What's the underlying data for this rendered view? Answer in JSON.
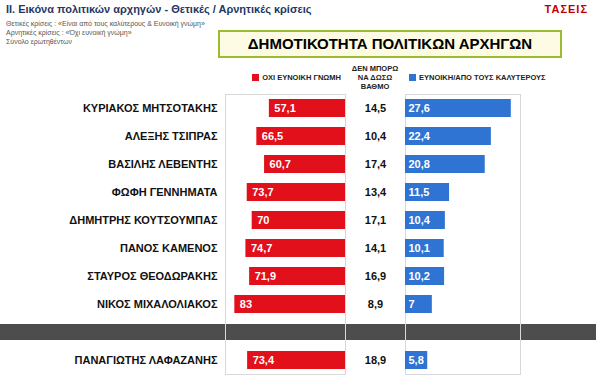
{
  "header": {
    "section": "ΙΙ. Εικόνα πολιτικών αρχηγών - Θετικές / Αρνητικές κρίσεις",
    "notes": [
      "Θετικές κρίσεις : «Είναι από τους καλύτερους & Ευνοική γνώμη»",
      "Αρνητικές κρίσεις : «Όχι ευνοική γνώμη»",
      "Σύνολο ερωτηθέντων"
    ],
    "logo": "ΤΑΣΕΙΣ"
  },
  "chart_data": {
    "type": "bar",
    "orientation": "horizontal",
    "title": "ΔΗΜΟΤΙΚΟΤΗΤΑ ΠΟΛΙΤΙΚΩΝ ΑΡΧΗΓΩΝ",
    "categories": [
      "ΚΥΡΙΑΚΟΣ ΜΗΤΣΟΤΑΚΗΣ",
      "ΑΛΕΞΗΣ ΤΣΙΠΡΑΣ",
      "ΒΑΣΙΛΗΣ ΛΕΒΕΝΤΗΣ",
      "ΦΩΦΗ ΓΕΝΝΗΜΑΤΑ",
      "ΔΗΜΗΤΡΗΣ ΚΟΥΤΣΟΥΜΠΑΣ",
      "ΠΑΝΟΣ ΚΑΜΕΝΟΣ",
      "ΣΤΑΥΡΟΣ ΘΕΟΔΩΡΑΚΗΣ",
      "ΝΙΚΟΣ ΜΙΧΑΛΟΛΙΑΚΟΣ",
      null,
      "ΠΑΝΑΓΙΩΤΗΣ ΛΑΦΑΖΑΝΗΣ"
    ],
    "data_labels": true,
    "tick_labels": false,
    "legend": "top",
    "series": [
      {
        "name": "ΟΧΙ ΕΥΝΟΙΚΗ ΓΝΩΜΗ",
        "color": "#e2101a",
        "xlim": [
          0,
          90
        ],
        "values": [
          57.1,
          66.5,
          60.7,
          73.7,
          70,
          74.7,
          71.9,
          83,
          null,
          73.4
        ],
        "value_labels": [
          "57,1",
          "66,5",
          "60,7",
          "73,7",
          "70",
          "74,7",
          "71,9",
          "83",
          null,
          "73,4"
        ]
      },
      {
        "name": "ΔΕΝ ΜΠΟΡΩ ΝΑ ΔΩΣΩ ΒΑΘΜΟ",
        "type": "text",
        "values": [
          14.5,
          10.4,
          17.4,
          13.4,
          17.1,
          14.1,
          16.9,
          8.9,
          null,
          18.9
        ],
        "value_labels": [
          "14,5",
          "10,4",
          "17,4",
          "13,4",
          "17,1",
          "14,1",
          "16,9",
          "8,9",
          null,
          "18,9"
        ]
      },
      {
        "name": "ΕΥΝΟΙΚΗ/ΑΠΟ ΤΟΥΣ ΚΑΛΥΤΕΡΟΥΣ",
        "color": "#2f73d3",
        "xlim": [
          0,
          30
        ],
        "values": [
          27.6,
          22.4,
          20.8,
          11.5,
          10.4,
          10.1,
          10.2,
          7,
          null,
          5.8
        ],
        "value_labels": [
          "27,6",
          "22,4",
          "20,8",
          "11,5",
          "10,4",
          "10,1",
          "10,2",
          "7",
          null,
          "5,8"
        ]
      }
    ]
  }
}
